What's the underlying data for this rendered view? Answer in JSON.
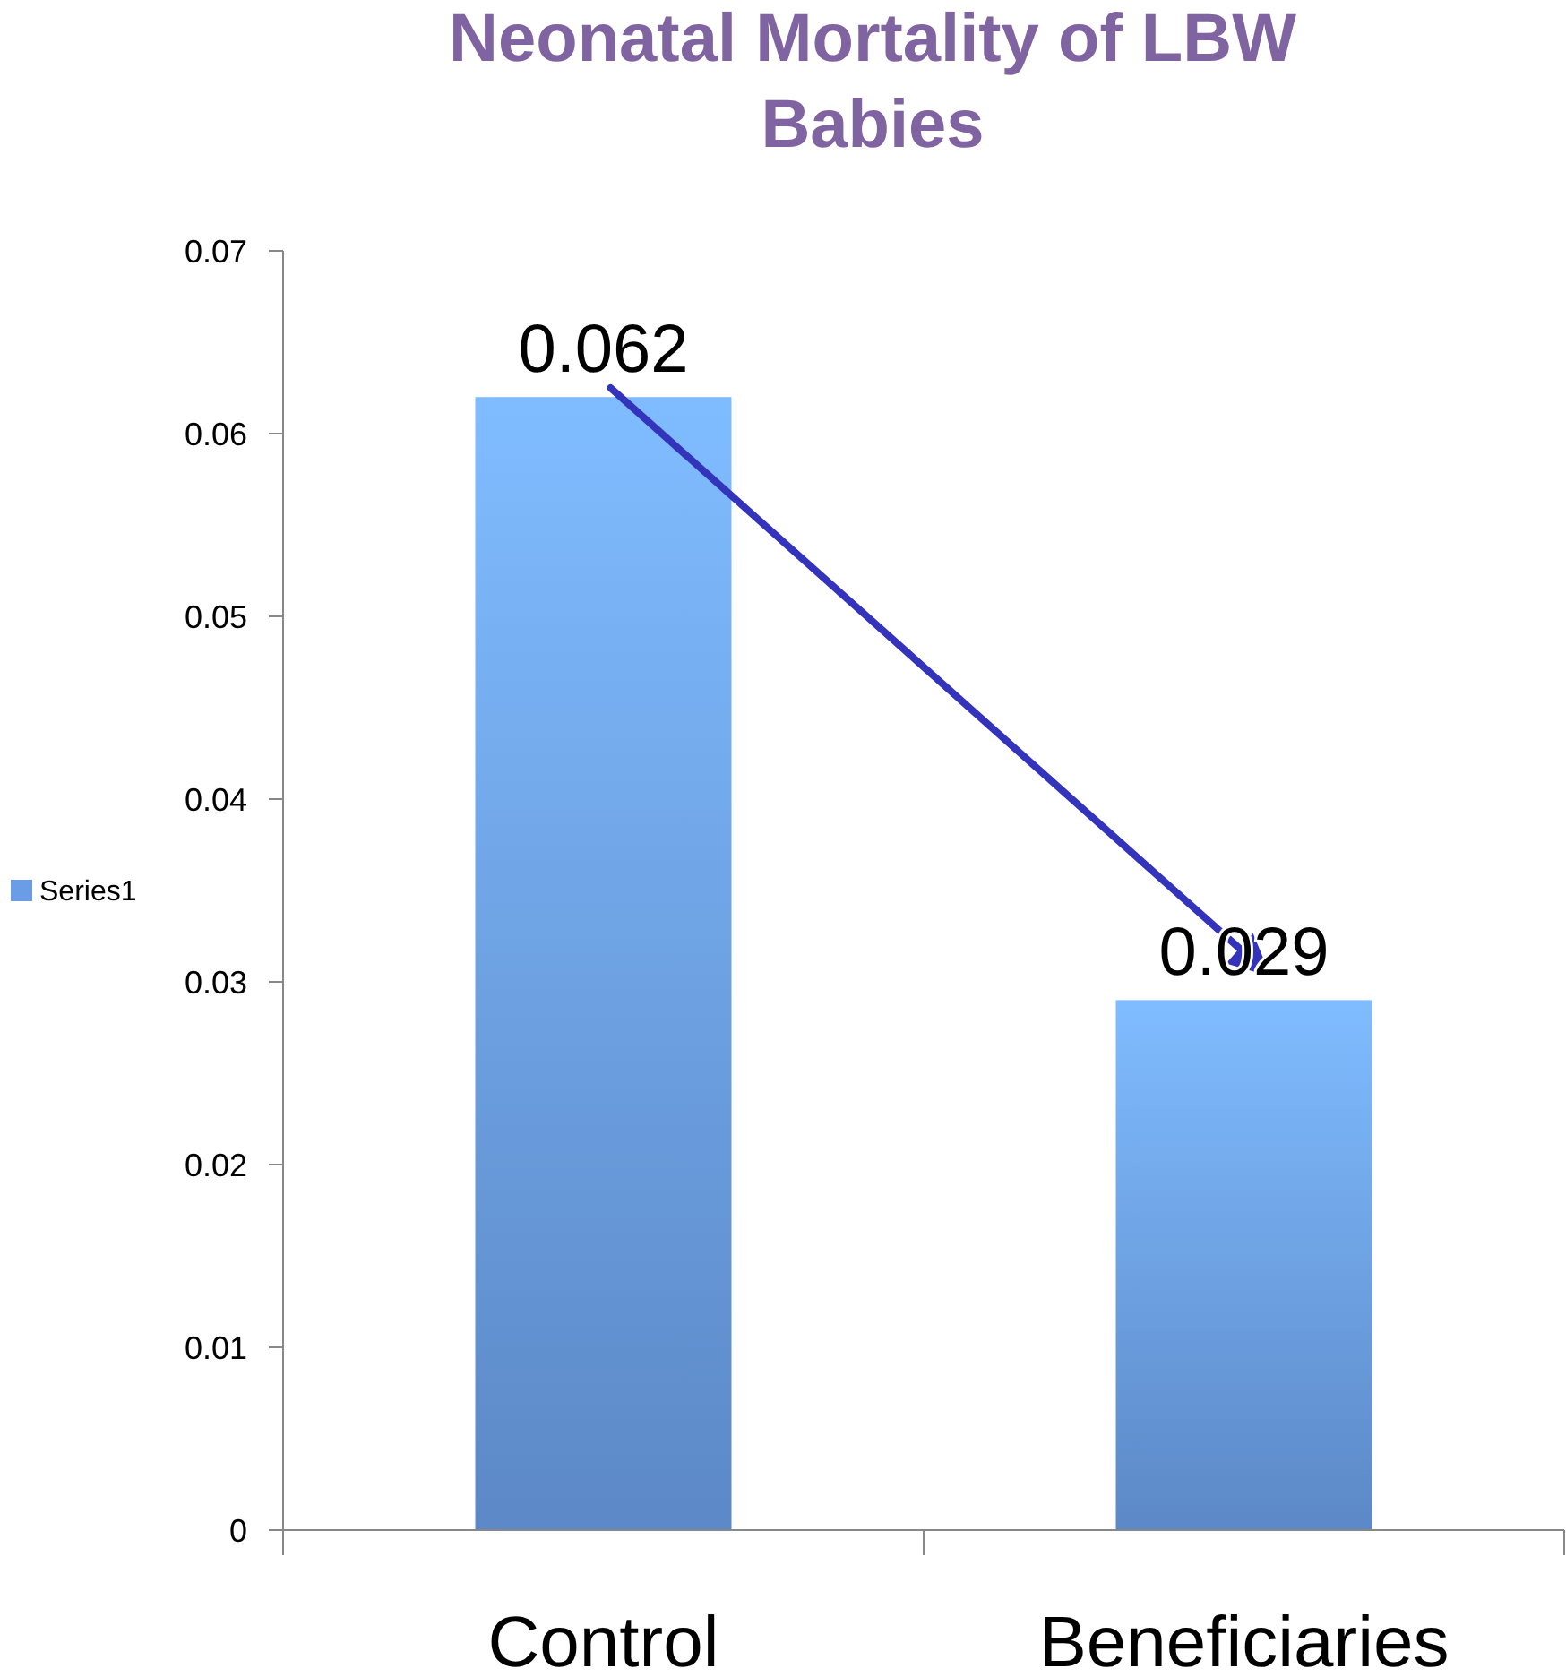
{
  "chart_data": {
    "type": "bar",
    "title": "Neonatal Mortality of LBW Babies",
    "categories": [
      "Control",
      "Beneficiaries"
    ],
    "series": [
      {
        "name": "Series1",
        "color": "#6a9de6",
        "values": [
          0.062,
          0.029
        ]
      }
    ],
    "ylim": [
      0,
      0.07
    ],
    "yticks": [
      0,
      0.01,
      0.02,
      0.03,
      0.04,
      0.05,
      0.06,
      0.07
    ],
    "data_labels": true,
    "legend": "left",
    "grid": false
  }
}
